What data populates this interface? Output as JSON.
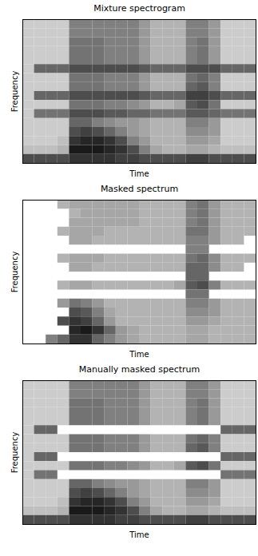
{
  "chart_data": [
    {
      "type": "heatmap",
      "title": "Mixture spectrogram",
      "xlabel": "Time",
      "ylabel": "Frequency",
      "tick_labels": false,
      "zlim": [
        0,
        1
      ],
      "cells": [
        [
          0.2,
          0.2,
          0.2,
          0.2,
          0.5,
          0.5,
          0.5,
          0.5,
          0.5,
          0.5,
          0.4,
          0.3,
          0.3,
          0.3,
          0.5,
          0.5,
          0.4,
          0.2,
          0.2,
          0.2
        ],
        [
          0.2,
          0.2,
          0.2,
          0.2,
          0.5,
          0.5,
          0.5,
          0.5,
          0.5,
          0.5,
          0.4,
          0.3,
          0.3,
          0.3,
          0.5,
          0.5,
          0.4,
          0.2,
          0.2,
          0.2
        ],
        [
          0.2,
          0.2,
          0.2,
          0.2,
          0.55,
          0.55,
          0.55,
          0.5,
          0.5,
          0.5,
          0.4,
          0.3,
          0.3,
          0.3,
          0.5,
          0.55,
          0.4,
          0.2,
          0.2,
          0.2
        ],
        [
          0.2,
          0.2,
          0.2,
          0.2,
          0.55,
          0.55,
          0.55,
          0.5,
          0.5,
          0.5,
          0.4,
          0.3,
          0.3,
          0.3,
          0.5,
          0.55,
          0.4,
          0.2,
          0.2,
          0.2
        ],
        [
          0.2,
          0.2,
          0.2,
          0.2,
          0.55,
          0.55,
          0.55,
          0.5,
          0.5,
          0.5,
          0.4,
          0.3,
          0.3,
          0.3,
          0.5,
          0.55,
          0.4,
          0.2,
          0.2,
          0.2
        ],
        [
          0.2,
          0.6,
          0.6,
          0.6,
          0.7,
          0.7,
          0.7,
          0.7,
          0.7,
          0.7,
          0.65,
          0.6,
          0.6,
          0.6,
          0.7,
          0.7,
          0.7,
          0.6,
          0.6,
          0.6
        ],
        [
          0.2,
          0.2,
          0.2,
          0.2,
          0.55,
          0.55,
          0.55,
          0.5,
          0.5,
          0.5,
          0.4,
          0.3,
          0.3,
          0.3,
          0.55,
          0.6,
          0.5,
          0.2,
          0.2,
          0.2
        ],
        [
          0.2,
          0.2,
          0.2,
          0.2,
          0.55,
          0.55,
          0.55,
          0.5,
          0.5,
          0.5,
          0.4,
          0.3,
          0.3,
          0.3,
          0.6,
          0.65,
          0.5,
          0.2,
          0.2,
          0.2
        ],
        [
          0.2,
          0.6,
          0.6,
          0.6,
          0.7,
          0.7,
          0.7,
          0.7,
          0.7,
          0.7,
          0.65,
          0.6,
          0.6,
          0.6,
          0.75,
          0.75,
          0.7,
          0.6,
          0.6,
          0.6
        ],
        [
          0.2,
          0.2,
          0.2,
          0.2,
          0.55,
          0.55,
          0.55,
          0.5,
          0.5,
          0.45,
          0.4,
          0.3,
          0.3,
          0.35,
          0.65,
          0.7,
          0.55,
          0.2,
          0.2,
          0.2
        ],
        [
          0.2,
          0.55,
          0.55,
          0.55,
          0.7,
          0.7,
          0.7,
          0.65,
          0.65,
          0.6,
          0.6,
          0.55,
          0.55,
          0.55,
          0.65,
          0.65,
          0.6,
          0.55,
          0.55,
          0.55
        ],
        [
          0.2,
          0.2,
          0.2,
          0.2,
          0.6,
          0.6,
          0.5,
          0.45,
          0.4,
          0.4,
          0.35,
          0.3,
          0.3,
          0.3,
          0.5,
          0.5,
          0.4,
          0.2,
          0.2,
          0.2
        ],
        [
          0.2,
          0.2,
          0.2,
          0.2,
          0.7,
          0.75,
          0.7,
          0.6,
          0.5,
          0.4,
          0.35,
          0.3,
          0.3,
          0.3,
          0.45,
          0.45,
          0.4,
          0.2,
          0.2,
          0.2
        ],
        [
          0.2,
          0.2,
          0.2,
          0.25,
          0.8,
          0.85,
          0.85,
          0.8,
          0.7,
          0.5,
          0.4,
          0.3,
          0.3,
          0.3,
          0.4,
          0.4,
          0.35,
          0.2,
          0.2,
          0.2
        ],
        [
          0.25,
          0.25,
          0.25,
          0.3,
          0.9,
          0.9,
          0.9,
          0.85,
          0.8,
          0.7,
          0.5,
          0.35,
          0.3,
          0.3,
          0.35,
          0.35,
          0.3,
          0.25,
          0.25,
          0.25
        ],
        [
          0.7,
          0.7,
          0.7,
          0.7,
          0.8,
          0.8,
          0.8,
          0.8,
          0.75,
          0.75,
          0.7,
          0.7,
          0.7,
          0.7,
          0.75,
          0.75,
          0.7,
          0.7,
          0.7,
          0.7
        ]
      ]
    },
    {
      "type": "heatmap",
      "title": "Masked spectrum",
      "xlabel": "Time",
      "ylabel": "Frequency",
      "tick_labels": false,
      "zlim": [
        0,
        1
      ],
      "cells": [
        [
          null,
          null,
          null,
          0.3,
          0.35,
          0.35,
          0.35,
          0.35,
          0.35,
          0.35,
          0.3,
          0.3,
          0.3,
          0.3,
          0.5,
          0.55,
          0.4,
          0.3,
          0.3,
          0.3
        ],
        [
          null,
          null,
          null,
          null,
          0.3,
          0.35,
          0.35,
          0.35,
          0.35,
          0.35,
          0.3,
          0.3,
          0.3,
          0.3,
          0.5,
          0.55,
          0.4,
          0.3,
          0.3,
          0.3
        ],
        [
          null,
          null,
          null,
          null,
          0.35,
          0.35,
          0.35,
          0.35,
          0.35,
          0.35,
          0.3,
          0.3,
          0.3,
          0.3,
          0.5,
          0.55,
          0.4,
          0.3,
          0.3,
          0.3
        ],
        [
          null,
          null,
          null,
          0.3,
          0.35,
          0.35,
          0.35,
          0.3,
          0.3,
          0.3,
          0.3,
          0.3,
          0.3,
          0.3,
          0.55,
          0.55,
          0.4,
          0.3,
          0.3,
          0.3
        ],
        [
          null,
          null,
          null,
          null,
          0.35,
          0.35,
          0.3,
          0.3,
          0.3,
          0.3,
          0.3,
          0.3,
          0.3,
          0.3,
          0.5,
          0.5,
          0.4,
          0.3,
          0.3,
          null
        ],
        [
          null,
          null,
          null,
          null,
          null,
          null,
          null,
          null,
          null,
          null,
          null,
          null,
          null,
          null,
          0.5,
          0.5,
          null,
          null,
          null,
          null
        ],
        [
          null,
          null,
          null,
          0.3,
          0.35,
          0.35,
          0.35,
          0.3,
          0.3,
          0.3,
          0.3,
          0.3,
          0.3,
          0.3,
          0.55,
          0.6,
          0.45,
          0.3,
          0.3,
          0.3
        ],
        [
          null,
          null,
          null,
          null,
          0.35,
          0.35,
          0.3,
          0.3,
          0.3,
          0.3,
          0.3,
          0.3,
          0.3,
          0.3,
          0.6,
          0.6,
          0.45,
          0.3,
          0.3,
          null
        ],
        [
          null,
          null,
          null,
          null,
          null,
          null,
          null,
          null,
          null,
          null,
          null,
          null,
          null,
          null,
          0.6,
          0.6,
          null,
          null,
          null,
          null
        ],
        [
          null,
          null,
          null,
          0.3,
          0.35,
          0.35,
          0.3,
          0.3,
          0.3,
          0.3,
          0.3,
          0.3,
          0.3,
          0.35,
          0.65,
          0.7,
          0.5,
          0.3,
          0.3,
          0.3
        ],
        [
          null,
          null,
          null,
          null,
          null,
          null,
          null,
          null,
          null,
          null,
          null,
          null,
          null,
          null,
          0.55,
          0.55,
          null,
          null,
          null,
          null
        ],
        [
          null,
          null,
          null,
          0.4,
          0.55,
          0.5,
          0.4,
          0.3,
          0.3,
          0.3,
          0.3,
          0.3,
          0.3,
          0.3,
          0.5,
          0.5,
          0.4,
          0.3,
          0.3,
          0.3
        ],
        [
          null,
          null,
          null,
          null,
          0.7,
          0.65,
          0.5,
          0.35,
          0.3,
          0.3,
          0.3,
          0.3,
          0.3,
          0.3,
          0.45,
          0.45,
          0.4,
          0.3,
          0.3,
          0.3
        ],
        [
          null,
          null,
          null,
          0.7,
          0.8,
          0.75,
          0.6,
          0.4,
          0.3,
          0.3,
          0.3,
          0.3,
          0.3,
          0.3,
          0.4,
          0.4,
          0.35,
          0.3,
          0.3,
          0.3
        ],
        [
          null,
          null,
          null,
          null,
          0.85,
          0.9,
          0.8,
          0.6,
          0.4,
          0.35,
          0.3,
          0.3,
          0.3,
          0.3,
          0.35,
          0.35,
          0.3,
          0.3,
          0.3,
          0.3
        ],
        [
          null,
          null,
          0.5,
          0.6,
          0.8,
          0.8,
          0.6,
          0.5,
          0.4,
          0.35,
          0.3,
          0.3,
          0.3,
          0.3,
          0.35,
          0.35,
          0.3,
          0.3,
          0.3,
          0.3
        ]
      ]
    },
    {
      "type": "heatmap",
      "title": "Manually masked spectrum",
      "xlabel": "Time",
      "ylabel": "Frequency",
      "tick_labels": false,
      "zlim": [
        0,
        1
      ],
      "cells": [
        [
          0.2,
          0.2,
          0.2,
          0.2,
          0.5,
          0.5,
          0.5,
          0.5,
          0.5,
          0.5,
          0.4,
          0.3,
          0.3,
          0.3,
          0.5,
          0.5,
          0.4,
          0.2,
          0.2,
          0.2
        ],
        [
          0.2,
          0.2,
          0.2,
          0.2,
          0.5,
          0.5,
          0.5,
          0.5,
          0.5,
          0.5,
          0.4,
          0.3,
          0.3,
          0.3,
          0.5,
          0.5,
          0.4,
          0.2,
          0.2,
          0.2
        ],
        [
          0.2,
          0.2,
          0.2,
          0.2,
          0.55,
          0.55,
          0.55,
          0.5,
          0.5,
          0.5,
          0.4,
          0.3,
          0.3,
          0.3,
          0.5,
          0.55,
          0.4,
          0.2,
          0.2,
          0.2
        ],
        [
          0.2,
          0.2,
          0.2,
          0.2,
          0.55,
          0.55,
          0.55,
          0.5,
          0.5,
          0.5,
          0.4,
          0.3,
          0.3,
          0.3,
          0.5,
          0.55,
          0.4,
          0.2,
          0.2,
          0.2
        ],
        [
          0.2,
          0.2,
          0.2,
          0.2,
          0.55,
          0.55,
          0.55,
          0.5,
          0.5,
          0.5,
          0.4,
          0.3,
          0.3,
          0.3,
          0.5,
          0.55,
          0.4,
          0.2,
          0.2,
          0.2
        ],
        [
          0.2,
          0.6,
          0.6,
          null,
          null,
          null,
          null,
          null,
          null,
          null,
          null,
          null,
          null,
          null,
          null,
          null,
          null,
          0.6,
          0.6,
          0.6
        ],
        [
          0.2,
          0.2,
          0.2,
          0.2,
          0.55,
          0.55,
          0.55,
          0.5,
          0.5,
          0.5,
          0.4,
          0.3,
          0.3,
          0.3,
          0.55,
          0.6,
          0.5,
          0.2,
          0.2,
          0.2
        ],
        [
          0.2,
          0.2,
          0.2,
          0.2,
          0.55,
          0.55,
          0.55,
          0.5,
          0.5,
          0.5,
          0.4,
          0.3,
          0.3,
          0.3,
          0.6,
          0.65,
          0.5,
          0.2,
          0.2,
          0.2
        ],
        [
          0.2,
          0.6,
          0.6,
          null,
          null,
          null,
          null,
          null,
          null,
          null,
          null,
          null,
          null,
          null,
          null,
          null,
          null,
          0.6,
          0.6,
          0.6
        ],
        [
          0.2,
          0.2,
          0.2,
          0.2,
          0.55,
          0.55,
          0.55,
          0.5,
          0.5,
          0.45,
          0.4,
          0.3,
          0.3,
          0.35,
          0.65,
          0.7,
          0.55,
          0.2,
          0.2,
          0.2
        ],
        [
          0.2,
          0.55,
          0.55,
          null,
          null,
          null,
          null,
          null,
          null,
          null,
          null,
          null,
          null,
          null,
          null,
          null,
          null,
          0.55,
          0.55,
          0.55
        ],
        [
          0.2,
          0.2,
          0.2,
          0.2,
          0.6,
          0.6,
          0.5,
          0.45,
          0.4,
          0.4,
          0.35,
          0.3,
          0.3,
          0.3,
          0.5,
          0.5,
          0.4,
          0.2,
          0.2,
          0.2
        ],
        [
          0.2,
          0.2,
          0.2,
          0.2,
          0.7,
          0.75,
          0.7,
          0.6,
          0.5,
          0.4,
          0.35,
          0.3,
          0.3,
          0.3,
          0.45,
          0.45,
          0.4,
          0.2,
          0.2,
          0.2
        ],
        [
          0.2,
          0.2,
          0.2,
          0.25,
          0.8,
          0.85,
          0.85,
          0.8,
          0.7,
          0.5,
          0.4,
          0.3,
          0.3,
          0.3,
          0.4,
          0.4,
          0.35,
          0.2,
          0.2,
          0.2
        ],
        [
          0.25,
          0.25,
          0.25,
          0.3,
          0.9,
          0.9,
          0.9,
          0.85,
          0.8,
          0.7,
          0.5,
          0.35,
          0.3,
          0.3,
          0.35,
          0.35,
          0.3,
          0.25,
          0.25,
          0.25
        ],
        [
          0.7,
          0.7,
          0.7,
          0.7,
          0.8,
          0.8,
          0.8,
          0.8,
          0.75,
          0.75,
          0.7,
          0.7,
          0.7,
          0.7,
          0.75,
          0.75,
          0.7,
          0.7,
          0.7,
          0.7
        ]
      ]
    }
  ]
}
